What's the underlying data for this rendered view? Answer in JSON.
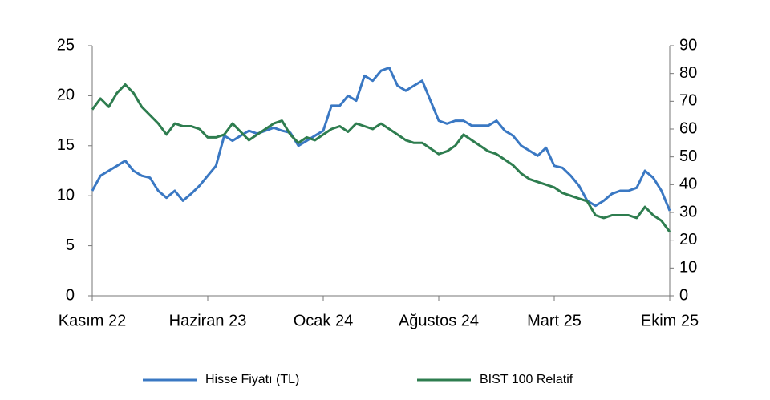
{
  "chart_data": {
    "type": "line",
    "categories": [
      "Kasım 22",
      null,
      null,
      null,
      null,
      null,
      null,
      null,
      null,
      null,
      null,
      null,
      null,
      null,
      "Haziran 23",
      null,
      null,
      null,
      null,
      null,
      null,
      null,
      null,
      null,
      null,
      null,
      null,
      null,
      "Ocak 24",
      null,
      null,
      null,
      null,
      null,
      null,
      null,
      null,
      null,
      null,
      null,
      null,
      null,
      "Ağustos 24",
      null,
      null,
      null,
      null,
      null,
      null,
      null,
      null,
      null,
      null,
      null,
      null,
      null,
      "Mart 25",
      null,
      null,
      null,
      null,
      null,
      null,
      null,
      null,
      null,
      null,
      null,
      null,
      null,
      "Ekim 25"
    ],
    "series": [
      {
        "name": "Hisse Fiyatı (TL)",
        "color": "#3a78c3",
        "axis": "y",
        "values": [
          10.5,
          12,
          12.5,
          13,
          13.5,
          12.5,
          12,
          11.8,
          10.5,
          9.8,
          10.5,
          9.5,
          10.2,
          11,
          12,
          13,
          16,
          15.5,
          16,
          16.5,
          16.2,
          16.5,
          16.8,
          16.5,
          16.3,
          15,
          15.5,
          16,
          16.5,
          19,
          19,
          20,
          19.5,
          22,
          21.5,
          22.5,
          22.8,
          21,
          20.5,
          21,
          21.5,
          19.5,
          17.5,
          17.2,
          17.5,
          17.5,
          17,
          17,
          17,
          17.5,
          16.5,
          16,
          15,
          14.5,
          14,
          14.8,
          13,
          12.8,
          12,
          11,
          9.5,
          9,
          9.5,
          10.2,
          10.5,
          10.5,
          10.8,
          12.5,
          11.8,
          10.5,
          8.5
        ]
      },
      {
        "name": "BIST 100 Relatif",
        "color": "#2e7d4f",
        "axis": "y2",
        "values": [
          67,
          71,
          68,
          73,
          76,
          73,
          68,
          65,
          62,
          58,
          62,
          61,
          61,
          60,
          57,
          57,
          58,
          62,
          59,
          56,
          58,
          60,
          62,
          63,
          58,
          55,
          57,
          56,
          58,
          60,
          61,
          59,
          62,
          61,
          60,
          62,
          60,
          58,
          56,
          55,
          55,
          53,
          51,
          52,
          54,
          58,
          56,
          54,
          52,
          51,
          49,
          47,
          44,
          42,
          41,
          40,
          39,
          37,
          36,
          35,
          34,
          29,
          28,
          29,
          29,
          29,
          28,
          32,
          29,
          27,
          23
        ]
      }
    ],
    "ylim": [
      0,
      25
    ],
    "yticks": [
      0,
      5,
      10,
      15,
      20,
      25
    ],
    "y2lim": [
      0,
      90
    ],
    "y2ticks": [
      0,
      10,
      20,
      30,
      40,
      50,
      60,
      70,
      80,
      90
    ],
    "legend": "bottom"
  }
}
